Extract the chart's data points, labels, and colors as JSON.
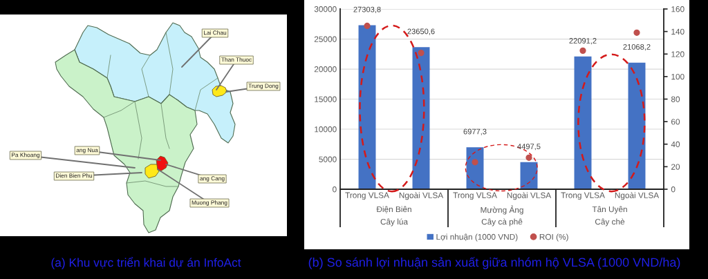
{
  "chart_data": [
    {
      "type": "other",
      "title": "(a) Khu vực triển khai dự án InfoAct",
      "annotations": [
        "Lai Chau",
        "Than Thuoc",
        "Trung Dong",
        "ang Nua",
        "Pa Khoang",
        "Dien Bien Phu",
        "ang Cang",
        "Muong Phang"
      ]
    },
    {
      "type": "bar",
      "title": "(b) So sánh lợi nhuận sản xuất giữa nhóm hộ VLSA (1000 VND/ha)",
      "categories": [
        "Trong VLSA",
        "Ngoài VLSA",
        "Trong VLSA",
        "Ngoài VLSA",
        "Trong VLSA",
        "Ngoài VLSA"
      ],
      "annotations": [
        "Điện Biên",
        "Cây lúa",
        "Mường Ảng",
        "Cây cà phê",
        "Tân Uyên",
        "Cây chè"
      ],
      "series": [
        {
          "name": "Lợi nhuận (1000 VND)",
          "type": "bar",
          "color": "#4472c4",
          "values": [
            27303.8,
            23650.6,
            6977.3,
            4497.5,
            22091.2,
            21068.2
          ],
          "value_labels": [
            "27303,8",
            "23650,6",
            "6977,3",
            "4497,5",
            "22091,2",
            "21068,2"
          ]
        },
        {
          "name": "ROI (%)",
          "type": "scatter",
          "axis": "y2",
          "marker": "circle",
          "color": "#c0504d",
          "values": [
            145,
            121,
            24,
            28,
            123,
            139
          ]
        }
      ],
      "ylim": [
        0,
        30000
      ],
      "yticks": [
        0,
        5000,
        10000,
        15000,
        20000,
        25000,
        30000
      ],
      "y2lim": [
        0,
        160
      ],
      "y2ticks": [
        0,
        20,
        40,
        60,
        80,
        100,
        120,
        140,
        160
      ],
      "grid": "y",
      "legend": "bottom"
    }
  ]
}
